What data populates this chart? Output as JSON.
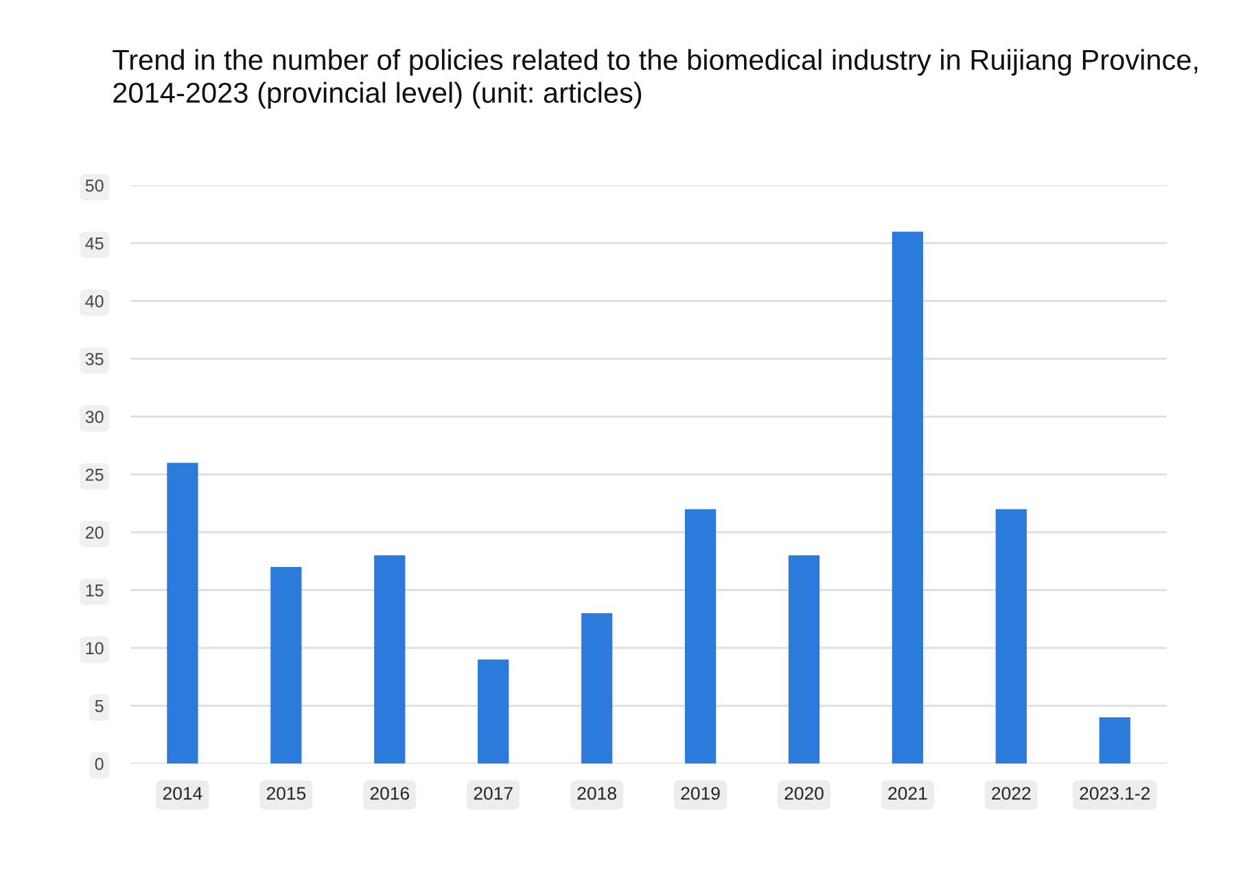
{
  "chart_data": {
    "type": "bar",
    "title": "Trend in the number of policies related to the biomedical industry in Ruijiang Province, 2014-2023 (provincial level) (unit: articles)",
    "categories": [
      "2014",
      "2015",
      "2016",
      "2017",
      "2018",
      "2019",
      "2020",
      "2021",
      "2022",
      "2023.1-2"
    ],
    "values": [
      26,
      17,
      18,
      9,
      13,
      22,
      18,
      46,
      22,
      4
    ],
    "color": "#2b7bdc",
    "ylim": [
      0,
      50
    ],
    "yticks": [
      0,
      5,
      10,
      15,
      20,
      25,
      30,
      35,
      40,
      45,
      50
    ],
    "grid": "y"
  }
}
